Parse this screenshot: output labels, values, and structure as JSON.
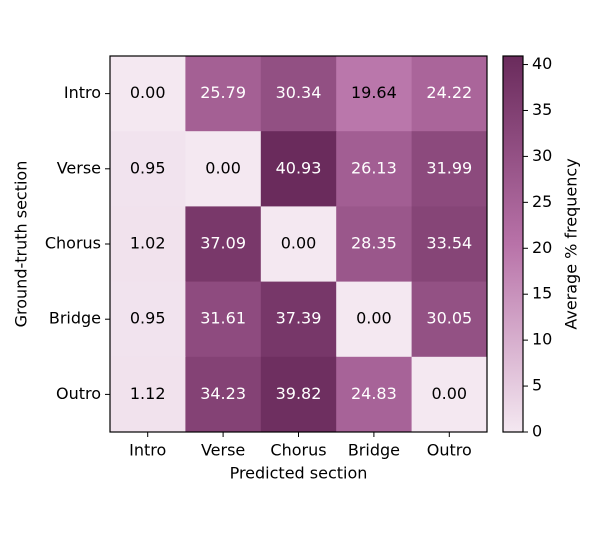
{
  "chart_data": {
    "type": "heatmap",
    "x_categories": [
      "Intro",
      "Verse",
      "Chorus",
      "Bridge",
      "Outro"
    ],
    "y_categories": [
      "Intro",
      "Verse",
      "Chorus",
      "Bridge",
      "Outro"
    ],
    "xlabel": "Predicted section",
    "ylabel": "Ground-truth section",
    "values": [
      [
        0,
        25.79,
        30.34,
        19.64,
        24.22
      ],
      [
        0.95,
        0,
        40.93,
        26.13,
        31.99
      ],
      [
        1.02,
        37.09,
        0,
        28.35,
        33.54
      ],
      [
        0.95,
        31.61,
        37.39,
        0,
        30.05
      ],
      [
        1.12,
        34.23,
        39.82,
        24.83,
        0
      ]
    ],
    "value_labels": [
      [
        "0.00",
        "25.79",
        "30.34",
        "19.64",
        "24.22"
      ],
      [
        "0.95",
        "0.00",
        "40.93",
        "26.13",
        "31.99"
      ],
      [
        "1.02",
        "37.09",
        "0.00",
        "28.35",
        "33.54"
      ],
      [
        "0.95",
        "31.61",
        "37.39",
        "0.00",
        "30.05"
      ],
      [
        "1.12",
        "34.23",
        "39.82",
        "24.83",
        "0.00"
      ]
    ],
    "colorbar_label": "Average % frequency",
    "clim": [
      0,
      40.93
    ],
    "cticks": [
      0,
      5,
      10,
      15,
      20,
      25,
      30,
      35,
      40
    ],
    "colormap": [
      "#f4e8f1",
      "#b872a8",
      "#6a2b5c"
    ]
  }
}
